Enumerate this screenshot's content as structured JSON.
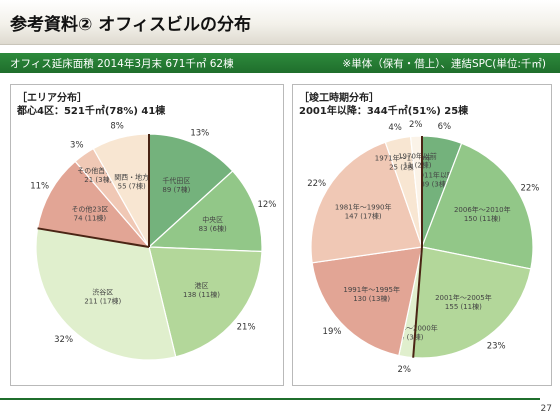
{
  "header": {
    "title": "参考資料② オフィスビルの分布"
  },
  "summary_bar": {
    "left": "オフィス延床面積 2014年3月末 671千㎡ 62棟",
    "right": "※単体（保有・借上）、連結SPC(単位:千㎡)"
  },
  "left_panel": {
    "heading": "［エリア分布］",
    "sub": "都心4区：521千㎡(78%) 41棟"
  },
  "right_panel": {
    "heading": "［竣工時期分布］",
    "sub": "2001年以降：344千㎡(51%) 25棟"
  },
  "page_number": "27",
  "chart_data": [
    {
      "type": "pie",
      "title": "［エリア分布］",
      "subtitle": "都心4区：521千㎡(78%) 41棟",
      "unit": "千㎡",
      "slices": [
        {
          "name": "千代田区",
          "value": 89,
          "buildings": "89 (7棟)",
          "percent": "13%",
          "color": "#74b27c"
        },
        {
          "name": "中央区",
          "value": 83,
          "buildings": "83 (6棟)",
          "percent": "12%",
          "color": "#92c788"
        },
        {
          "name": "港区",
          "value": 138,
          "buildings": "138 (11棟)",
          "percent": "21%",
          "color": "#b3d79a"
        },
        {
          "name": "渋谷区",
          "value": 211,
          "buildings": "211 (17棟)",
          "percent": "32%",
          "color": "#e0efcd"
        },
        {
          "name": "その他23区",
          "value": 74,
          "buildings": "74 (11棟)",
          "percent": "11%",
          "color": "#e2a595"
        },
        {
          "name": "その他首都圏",
          "value": 21,
          "buildings": "21 (3棟)",
          "percent": "3%",
          "color": "#f0c8b5"
        },
        {
          "name": "関西・地方",
          "value": 55,
          "buildings": "55 (7棟)",
          "percent": "8%",
          "color": "#f8e6d2"
        }
      ],
      "emphasis_group": "都心4区"
    },
    {
      "type": "pie",
      "title": "［竣工時期分布］",
      "subtitle": "2001年以降：344千㎡(51%) 25棟",
      "unit": "千㎡",
      "slices": [
        {
          "name": "2011年以降",
          "value": 39,
          "buildings": "39 (3棟)",
          "percent": "6%",
          "color": "#74b27c"
        },
        {
          "name": "2006年～2010年",
          "value": 150,
          "buildings": "150 (11棟)",
          "percent": "22%",
          "color": "#92c788"
        },
        {
          "name": "2001年～2005年",
          "value": 155,
          "buildings": "155 (11棟)",
          "percent": "23%",
          "color": "#b3d79a"
        },
        {
          "name": "1996年～2000年",
          "value": 14,
          "buildings": "14 (3棟)",
          "percent": "2%",
          "color": "#e0efcd"
        },
        {
          "name": "1991年～1995年",
          "value": 130,
          "buildings": "130 (13棟)",
          "percent": "19%",
          "color": "#e2a595"
        },
        {
          "name": "1981年～1990年",
          "value": 147,
          "buildings": "147 (17棟)",
          "percent": "22%",
          "color": "#f0c8b5"
        },
        {
          "name": "1971年～1980年",
          "value": 25,
          "buildings": "25 (2棟)",
          "percent": "4%",
          "color": "#f8e6d2"
        },
        {
          "name": "1970年以前",
          "value": 11,
          "buildings": "11 (2棟)",
          "percent": "2%",
          "color": "#fbf3e8"
        }
      ],
      "emphasis_group": "2001年以降"
    }
  ]
}
